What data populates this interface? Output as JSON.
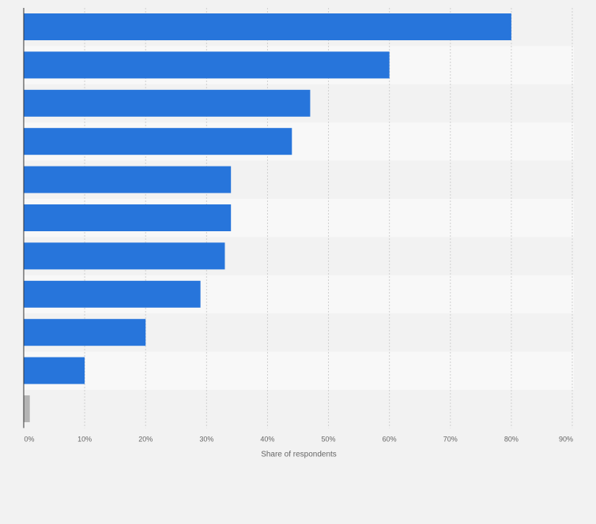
{
  "chart_data": {
    "type": "bar",
    "orientation": "horizontal",
    "categories": [
      "",
      "",
      "",
      "",
      "",
      "",
      "",
      "",
      "",
      "",
      ""
    ],
    "values": [
      80,
      60,
      47,
      44,
      34,
      34,
      33,
      29,
      20,
      10,
      1
    ],
    "xlabel": "Share of respondents",
    "xlim": [
      0,
      90
    ],
    "xticks": [
      "0%",
      "10%",
      "20%",
      "30%",
      "40%",
      "50%",
      "60%",
      "70%",
      "80%",
      "90%"
    ],
    "grid": true,
    "colors": {
      "bar": "#2775db",
      "last_bar": "#b4b4b4",
      "band_dark": "#f2f2f2",
      "band_light": "#f8f8f8",
      "grid": "#d0d0d0",
      "axis": "#333333",
      "tick_text": "#666666"
    }
  }
}
